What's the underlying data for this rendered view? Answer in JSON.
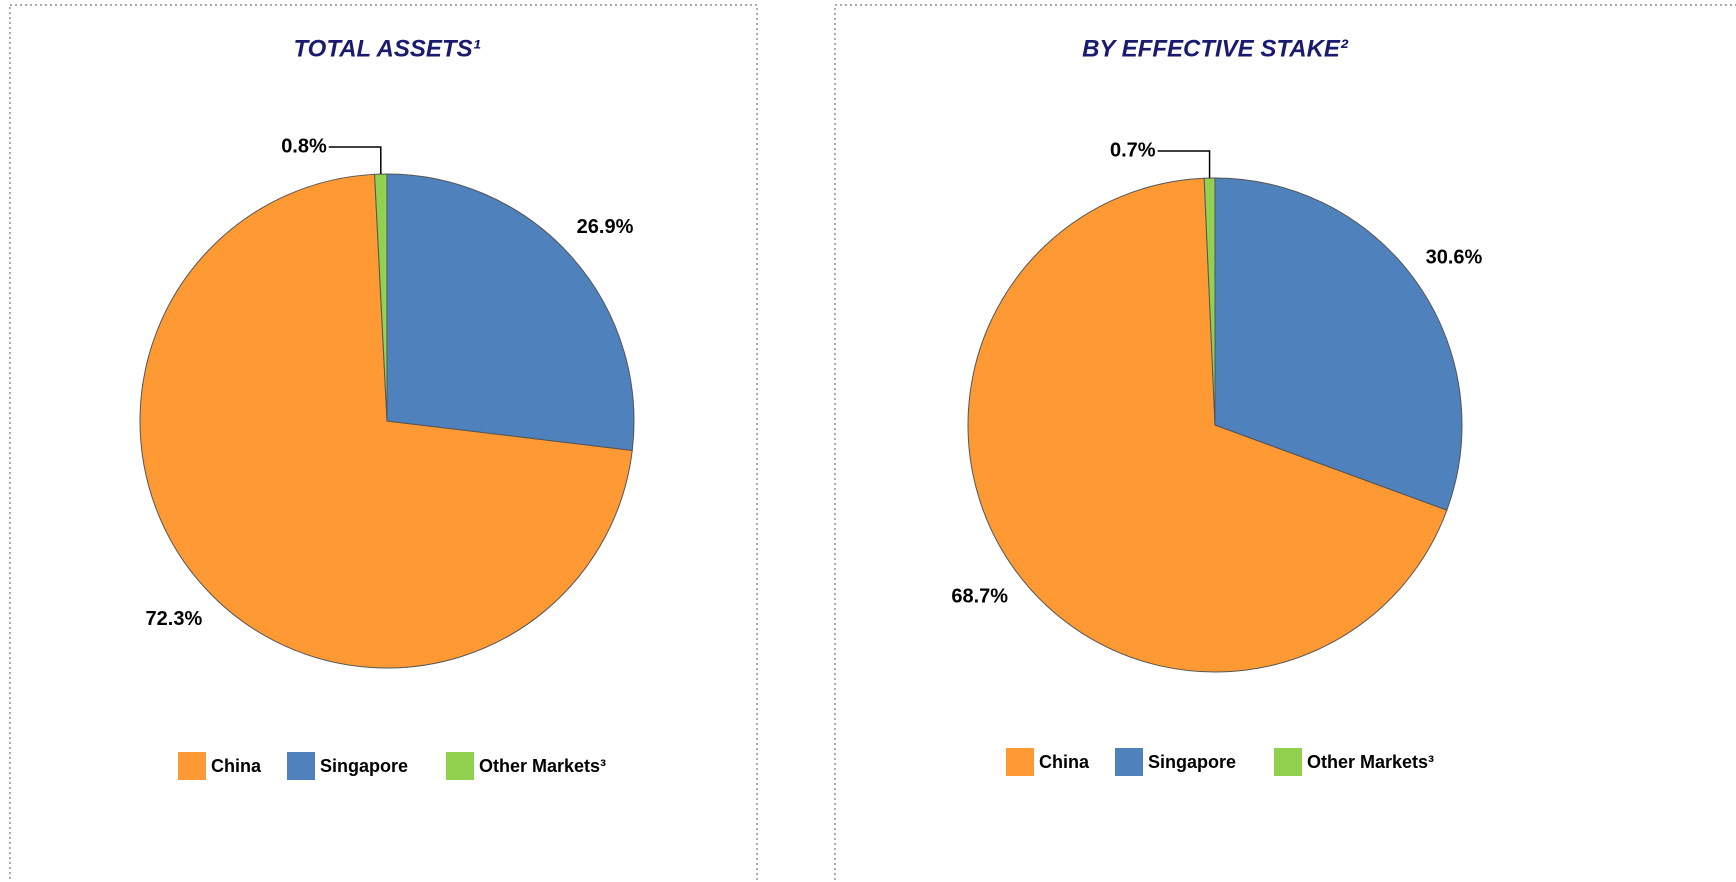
{
  "chart_data": [
    {
      "type": "pie",
      "title": "TOTAL ASSETS¹",
      "categories": [
        "China",
        "Singapore",
        "Other Markets³"
      ],
      "values": [
        72.3,
        26.9,
        0.8
      ],
      "value_labels": [
        "72.3%",
        "26.9%",
        "0.8%"
      ],
      "colors": [
        "#ff9933",
        "#4f81bd",
        "#92d050"
      ]
    },
    {
      "type": "pie",
      "title": "BY EFFECTIVE STAKE²",
      "categories": [
        "China",
        "Singapore",
        "Other Markets³"
      ],
      "values": [
        68.7,
        30.6,
        0.7
      ],
      "value_labels": [
        "68.7%",
        "30.6%",
        "0.7%"
      ],
      "colors": [
        "#ff9933",
        "#4f81bd",
        "#92d050"
      ]
    }
  ]
}
